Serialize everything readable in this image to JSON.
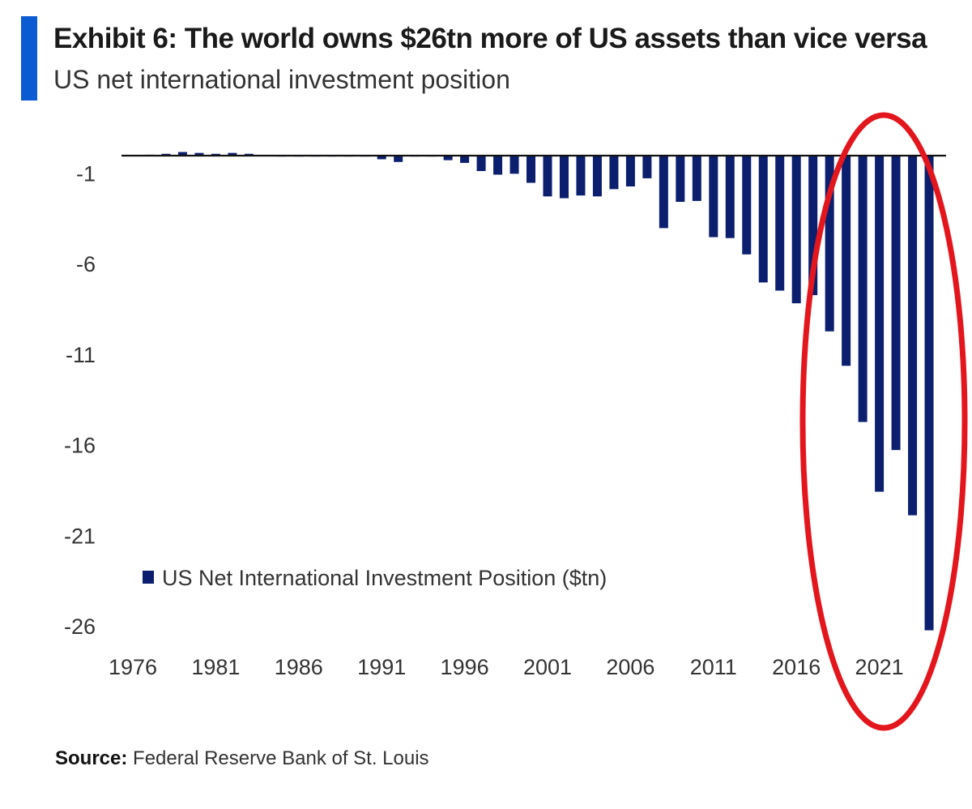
{
  "header": {
    "title": "Exhibit 6: The world owns $26tn more of US assets than vice versa",
    "subtitle": "US net international investment position"
  },
  "colors": {
    "accent": "#0b5bd3",
    "bar": "#0b1f6e",
    "highlight_ellipse": "#e4161d"
  },
  "chart_data": {
    "type": "bar",
    "title": "",
    "xlabel": "",
    "ylabel": "",
    "ylim": [
      -26.5,
      0.5
    ],
    "y_ticks": [
      "-1",
      "-6",
      "-11",
      "-16",
      "-21",
      "-26"
    ],
    "y_tick_values": [
      -1,
      -6,
      -11,
      -16,
      -21,
      -26
    ],
    "x_ticks": [
      "1976",
      "1981",
      "1986",
      "1991",
      "1996",
      "2001",
      "2006",
      "2011",
      "2016",
      "2021"
    ],
    "x_tick_values": [
      1976,
      1981,
      1986,
      1991,
      1996,
      2001,
      2006,
      2011,
      2016,
      2021
    ],
    "legend_position": "lower-left",
    "grid": false,
    "series": [
      {
        "name": "US Net International Investment Position ($tn)",
        "x": [
          1976,
          1977,
          1978,
          1979,
          1980,
          1981,
          1982,
          1983,
          1984,
          1985,
          1986,
          1987,
          1988,
          1989,
          1990,
          1991,
          1992,
          1993,
          1994,
          1995,
          1996,
          1997,
          1998,
          1999,
          2000,
          2001,
          2002,
          2003,
          2004,
          2005,
          2006,
          2007,
          2008,
          2009,
          2010,
          2011,
          2012,
          2013,
          2014,
          2015,
          2016,
          2017,
          2018,
          2019,
          2020,
          2021,
          2022,
          2023,
          2024
        ],
        "values": [
          0.0,
          0.05,
          0.1,
          0.2,
          0.15,
          0.1,
          0.15,
          0.1,
          0.0,
          -0.05,
          -0.05,
          -0.05,
          -0.05,
          -0.05,
          -0.05,
          -0.2,
          -0.35,
          -0.05,
          -0.05,
          -0.25,
          -0.4,
          -0.85,
          -1.05,
          -1.0,
          -1.5,
          -2.25,
          -2.35,
          -2.2,
          -2.25,
          -1.85,
          -1.7,
          -1.25,
          -4.0,
          -2.55,
          -2.5,
          -4.5,
          -4.55,
          -5.45,
          -7.0,
          -7.45,
          -8.15,
          -7.7,
          -9.7,
          -11.6,
          -14.7,
          -18.55,
          -16.25,
          -19.85,
          -26.2
        ]
      }
    ],
    "annotation": "red ellipse highlighting 2019-2024"
  },
  "footer": {
    "source_label": "Source:",
    "source_text": "Federal Reserve Bank of St. Louis"
  }
}
